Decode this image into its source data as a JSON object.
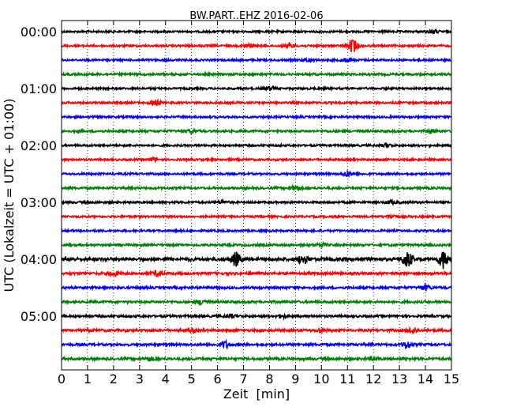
{
  "chart_data": {
    "type": "line",
    "title": "BW.PART..EHZ 2016-02-06",
    "xlabel": "Zeit  [min]",
    "ylabel": "UTC (Lokalzeit = UTC + 01:00)",
    "xlim": [
      0,
      15
    ],
    "xticks": [
      "0",
      "1",
      "2",
      "3",
      "4",
      "5",
      "6",
      "7",
      "8",
      "9",
      "10",
      "11",
      "12",
      "13",
      "14",
      "15"
    ],
    "yticks": [
      "00:00",
      "01:00",
      "02:00",
      "03:00",
      "04:00",
      "05:00"
    ],
    "grid": "vertical dotted",
    "trace_interval_min": 15,
    "colors": [
      "#000000",
      "#ff0000",
      "#0000ff",
      "#008000"
    ],
    "traces": [
      {
        "start": "00:00",
        "noise": 1.2,
        "events": [
          [
            14.3,
            2
          ]
        ]
      },
      {
        "start": "00:15",
        "noise": 1.2,
        "events": [
          [
            11.2,
            8
          ],
          [
            7.2,
            2
          ],
          [
            8.8,
            2
          ]
        ]
      },
      {
        "start": "00:30",
        "noise": 1.2,
        "events": [
          [
            9.5,
            2
          ],
          [
            11,
            2
          ]
        ]
      },
      {
        "start": "00:45",
        "noise": 1.3,
        "events": []
      },
      {
        "start": "01:00",
        "noise": 1.2,
        "events": [
          [
            8,
            2
          ]
        ]
      },
      {
        "start": "01:15",
        "noise": 1.2,
        "events": [
          [
            3.6,
            4
          ]
        ]
      },
      {
        "start": "01:30",
        "noise": 1.2,
        "events": []
      },
      {
        "start": "01:45",
        "noise": 1.3,
        "events": [
          [
            5,
            2
          ],
          [
            14.2,
            2
          ]
        ]
      },
      {
        "start": "02:00",
        "noise": 1.2,
        "events": [
          [
            12.5,
            2
          ]
        ]
      },
      {
        "start": "02:15",
        "noise": 1.2,
        "events": [
          [
            3.5,
            2
          ]
        ]
      },
      {
        "start": "02:30",
        "noise": 1.2,
        "events": [
          [
            11,
            3
          ]
        ]
      },
      {
        "start": "02:45",
        "noise": 1.3,
        "events": [
          [
            9,
            3
          ]
        ]
      },
      {
        "start": "03:00",
        "noise": 1.3,
        "events": [
          [
            6.2,
            2
          ],
          [
            12.7,
            2
          ]
        ]
      },
      {
        "start": "03:15",
        "noise": 1.2,
        "events": [
          [
            12.7,
            2
          ]
        ]
      },
      {
        "start": "03:30",
        "noise": 1.2,
        "events": []
      },
      {
        "start": "03:45",
        "noise": 1.3,
        "events": [
          [
            10,
            2
          ]
        ]
      },
      {
        "start": "04:00",
        "noise": 2.0,
        "events": [
          [
            6.7,
            8
          ],
          [
            9.3,
            5
          ],
          [
            13.3,
            10
          ],
          [
            14.7,
            11
          ]
        ]
      },
      {
        "start": "04:15",
        "noise": 1.5,
        "events": [
          [
            2,
            2
          ],
          [
            3.7,
            3
          ]
        ]
      },
      {
        "start": "04:30",
        "noise": 1.4,
        "events": [
          [
            14,
            3
          ]
        ]
      },
      {
        "start": "04:45",
        "noise": 1.4,
        "events": [
          [
            5.4,
            3
          ]
        ]
      },
      {
        "start": "05:00",
        "noise": 1.4,
        "events": [
          [
            8.5,
            2
          ],
          [
            6.5,
            2
          ]
        ]
      },
      {
        "start": "05:15",
        "noise": 1.5,
        "events": [
          [
            5,
            2
          ],
          [
            10,
            2
          ],
          [
            13.5,
            3
          ]
        ]
      },
      {
        "start": "05:30",
        "noise": 1.4,
        "events": [
          [
            6.3,
            4
          ],
          [
            13.3,
            4
          ]
        ]
      },
      {
        "start": "05:45",
        "noise": 1.5,
        "events": [
          [
            3.4,
            2
          ],
          [
            12,
            2
          ]
        ]
      }
    ]
  }
}
